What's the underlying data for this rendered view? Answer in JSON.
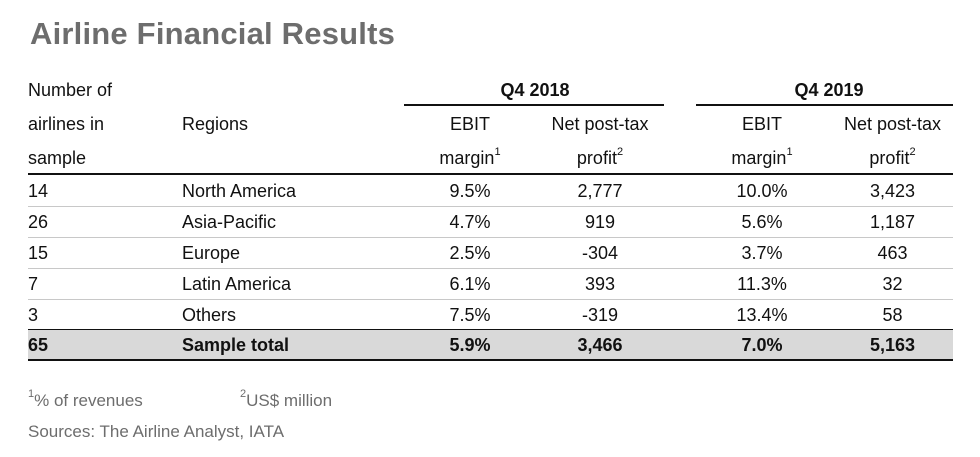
{
  "title": "Airline Financial Results",
  "header": {
    "col_count_line1": "Number of",
    "col_count_line2": "airlines in",
    "col_count_line3": "sample",
    "col_regions": "Regions",
    "period_1": "Q4 2018",
    "period_2": "Q4 2019",
    "ebit_line1": "EBIT",
    "ebit_line2": "margin",
    "ebit_sup": "1",
    "profit_line1": "Net post-tax",
    "profit_line2": "profit",
    "profit_sup": "2"
  },
  "rows": [
    {
      "count": "14",
      "region": "North America",
      "ebit_2018": "9.5%",
      "profit_2018": "2,777",
      "ebit_2019": "10.0%",
      "profit_2019": "3,423"
    },
    {
      "count": "26",
      "region": "Asia-Pacific",
      "ebit_2018": "4.7%",
      "profit_2018": "919",
      "ebit_2019": "5.6%",
      "profit_2019": "1,187"
    },
    {
      "count": "15",
      "region": "Europe",
      "ebit_2018": "2.5%",
      "profit_2018": "-304",
      "ebit_2019": "3.7%",
      "profit_2019": "463"
    },
    {
      "count": "7",
      "region": "Latin America",
      "ebit_2018": "6.1%",
      "profit_2018": "393",
      "ebit_2019": "11.3%",
      "profit_2019": "32"
    },
    {
      "count": "3",
      "region": "Others",
      "ebit_2018": "7.5%",
      "profit_2018": "-319",
      "ebit_2019": "13.4%",
      "profit_2019": "58"
    }
  ],
  "total": {
    "count": "65",
    "region": "Sample total",
    "ebit_2018": "5.9%",
    "profit_2018": "3,466",
    "ebit_2019": "7.0%",
    "profit_2019": "5,163"
  },
  "footnotes": {
    "note1_sup": "1",
    "note1_text": "% of revenues",
    "note2_sup": "2",
    "note2_text": "US$ million",
    "sources": "Sources: The Airline Analyst, IATA"
  },
  "colors": {
    "title": "#6d6d6d",
    "total_row_bg": "#d9d9d9",
    "footnote": "#6d6d6d"
  }
}
